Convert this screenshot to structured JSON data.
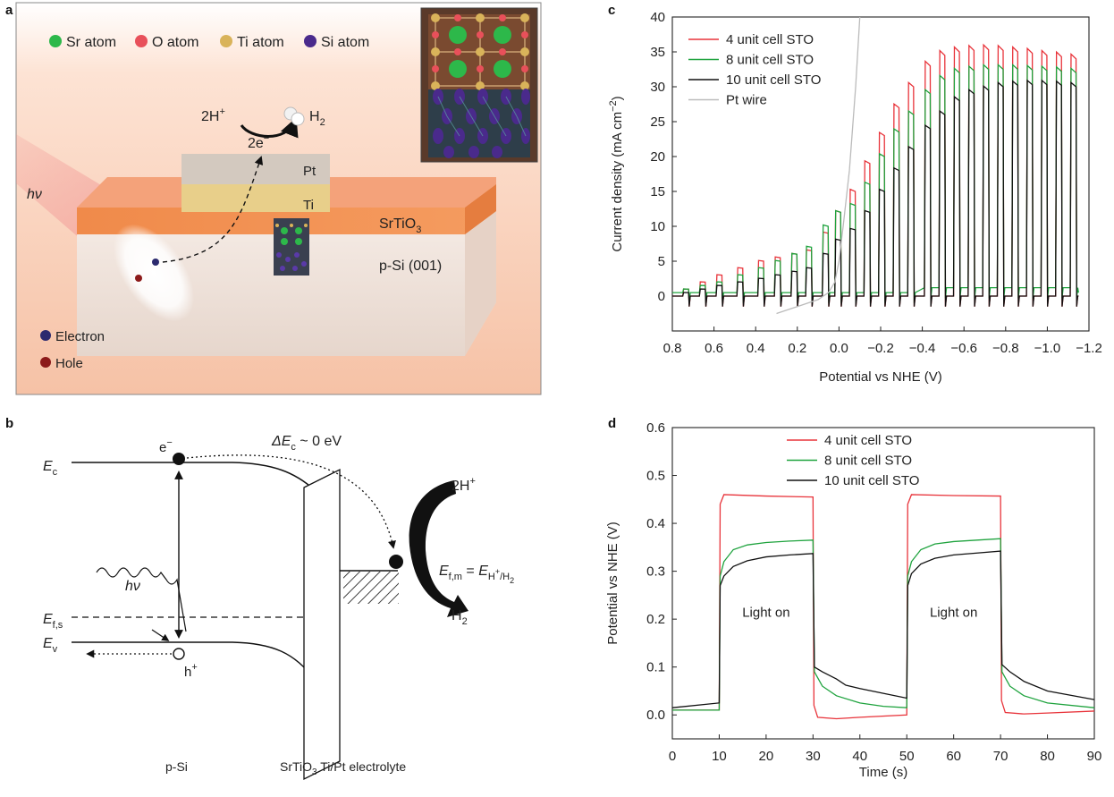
{
  "panel_labels": {
    "a": "a",
    "b": "b",
    "c": "c",
    "d": "d"
  },
  "panel_a": {
    "legend": [
      {
        "label": "Sr atom",
        "color": "#2db84a"
      },
      {
        "label": "O atom",
        "color": "#e8505a"
      },
      {
        "label": "Ti atom",
        "color": "#d9b35a"
      },
      {
        "label": "Si atom",
        "color": "#4a2a8c"
      }
    ],
    "reaction": {
      "reactant": "2H",
      "reactant_sup": "+",
      "electrons": "2e",
      "electrons_sup": "−",
      "product": "H",
      "product_sub": "2"
    },
    "layers": {
      "pt": "Pt",
      "ti": "Ti",
      "sto": "SrTiO",
      "sto_sub": "3",
      "si": "p-Si (001)"
    },
    "light": "hν",
    "carriers": [
      {
        "label": "Electron",
        "color": "#2c2a6e"
      },
      {
        "label": "Hole",
        "color": "#8c1a1a"
      }
    ]
  },
  "panel_b": {
    "ec": "E",
    "ec_sub": "c",
    "ev": "E",
    "ev_sub": "v",
    "efs": "E",
    "efs_sub": "f,s",
    "electron": "e",
    "electron_sup": "−",
    "hole": "h",
    "hole_sup": "+",
    "delta": "ΔE",
    "delta_sub": "c",
    "delta_val": " ~ 0 eV",
    "efm": "E",
    "efm_sub": "f,m",
    "efm_eq": " = ",
    "efm_rhs": "E",
    "efm_rhs_sub": "H",
    "efm_rhs_sub_sup": "+",
    "efm_rhs_sub_tail": "/H",
    "efm_rhs_sub_tail_sub": "2",
    "h2plus": "2H",
    "h2plus_sup": "+",
    "h2": "H",
    "h2_sub": "2",
    "light": "hν",
    "bottom_si": "p-Si",
    "bottom_right_a": "SrTiO",
    "bottom_right_sub": "3",
    "bottom_right_b": " Ti/Pt electrolyte"
  },
  "chart_data": [
    {
      "type": "line",
      "panel": "c",
      "xlabel": "Potential vs NHE (V)",
      "ylabel": "Current density (mA cm",
      "ylabel_sup": "−2",
      "ylabel_end": ")",
      "xlim": [
        0.8,
        -1.2
      ],
      "ylim": [
        -5,
        40
      ],
      "xticks": [
        0.8,
        0.6,
        0.4,
        0.2,
        0.0,
        -0.2,
        -0.4,
        -0.6,
        -0.8,
        -1.0,
        -1.2
      ],
      "xtick_labels": [
        "0.8",
        "0.6",
        "0.4",
        "0.2",
        "0.0",
        "−0.2",
        "−0.4",
        "−0.6",
        "−0.8",
        "−1.0",
        "−1.2"
      ],
      "yticks": [
        0,
        5,
        10,
        15,
        20,
        25,
        30,
        35,
        40
      ],
      "legend_position": "top-left",
      "series": [
        {
          "name": "4 unit cell STO",
          "color": "#e8333a",
          "light_on_x": [
            0.75,
            0.67,
            0.59,
            0.49,
            0.39,
            0.31,
            0.23,
            0.16,
            0.08,
            0.02,
            -0.05,
            -0.12,
            -0.19,
            -0.26,
            -0.33,
            -0.41,
            -0.48,
            -0.55,
            -0.62,
            -0.69,
            -0.76,
            -0.83,
            -0.9,
            -0.97,
            -1.04,
            -1.11
          ],
          "light_on_y": [
            1.0,
            2.0,
            3.0,
            4.0,
            5.0,
            5.5,
            6.0,
            6.5,
            9.0,
            12.0,
            15.0,
            19.0,
            23.0,
            27.0,
            30.0,
            33.0,
            34.5,
            35.0,
            35.2,
            35.3,
            35.2,
            35.0,
            34.8,
            34.5,
            34.3,
            34.0
          ],
          "dark_y": 0.0
        },
        {
          "name": "8 unit cell STO",
          "color": "#1fa33e",
          "light_on_x": [
            0.75,
            0.67,
            0.59,
            0.49,
            0.39,
            0.31,
            0.23,
            0.16,
            0.08,
            0.02,
            -0.05,
            -0.12,
            -0.19,
            -0.26,
            -0.33,
            -0.41,
            -0.48,
            -0.55,
            -0.62,
            -0.69,
            -0.76,
            -0.83,
            -0.9,
            -0.97,
            -1.04,
            -1.11
          ],
          "light_on_y": [
            1.0,
            1.5,
            2.0,
            3.0,
            4.0,
            5.0,
            6.0,
            7.0,
            10.0,
            12.0,
            13.0,
            16.0,
            20.0,
            23.5,
            26.0,
            29.0,
            31.0,
            32.0,
            32.3,
            32.5,
            32.5,
            32.5,
            32.4,
            32.3,
            32.2,
            32.0
          ],
          "dark_y": 0.5
        },
        {
          "name": "10 unit cell STO",
          "color": "#111111",
          "light_on_x": [
            0.75,
            0.67,
            0.59,
            0.49,
            0.39,
            0.31,
            0.23,
            0.16,
            0.08,
            0.02,
            -0.05,
            -0.12,
            -0.19,
            -0.26,
            -0.33,
            -0.41,
            -0.48,
            -0.55,
            -0.62,
            -0.69,
            -0.76,
            -0.83,
            -0.9,
            -0.97,
            -1.04,
            -1.11
          ],
          "light_on_y": [
            0.5,
            1.0,
            1.5,
            2.0,
            2.5,
            3.0,
            3.5,
            4.0,
            6.0,
            8.0,
            9.5,
            12.0,
            15.0,
            18.0,
            21.0,
            24.0,
            26.0,
            28.0,
            29.0,
            29.5,
            30.0,
            30.2,
            30.3,
            30.3,
            30.2,
            30.0
          ],
          "dark_y": 0.0
        },
        {
          "name": "Pt wire",
          "color": "#bbbbbb",
          "x": [
            0.3,
            0.2,
            0.1,
            0.05,
            0.02,
            0.0,
            -0.02,
            -0.05,
            -0.08,
            -0.1
          ],
          "y": [
            -2.5,
            -1.5,
            -0.5,
            0.5,
            2.0,
            5.0,
            10.0,
            18.0,
            30.0,
            40.0
          ]
        }
      ]
    },
    {
      "type": "line",
      "panel": "d",
      "xlabel": "Time (s)",
      "ylabel": "Potential vs NHE (V)",
      "xlim": [
        0,
        90
      ],
      "ylim": [
        -0.05,
        0.6
      ],
      "xticks": [
        0,
        10,
        20,
        30,
        40,
        50,
        60,
        70,
        80,
        90
      ],
      "yticks": [
        0.0,
        0.1,
        0.2,
        0.3,
        0.4,
        0.5,
        0.6
      ],
      "ytick_labels": [
        "0.0",
        "0.1",
        "0.2",
        "0.3",
        "0.4",
        "0.5",
        "0.6"
      ],
      "annotations": [
        "Light on",
        "Light on"
      ],
      "legend_position": "top-center",
      "series": [
        {
          "name": "4 unit cell STO",
          "color": "#e8333a",
          "x": [
            0,
            10,
            10.2,
            11,
            20,
            30,
            30.2,
            31,
            35,
            40,
            50,
            50.2,
            51,
            60,
            70,
            70.2,
            71,
            75,
            80,
            90
          ],
          "y": [
            0.01,
            0.01,
            0.44,
            0.46,
            0.457,
            0.455,
            0.02,
            -0.005,
            -0.008,
            -0.005,
            0.0,
            0.44,
            0.46,
            0.458,
            0.457,
            0.03,
            0.005,
            0.002,
            0.004,
            0.008
          ]
        },
        {
          "name": "8 unit cell STO",
          "color": "#1fa33e",
          "x": [
            0,
            10,
            10.2,
            11,
            13,
            16,
            20,
            25,
            30,
            30.3,
            32,
            35,
            40,
            45,
            50,
            50.2,
            51,
            53,
            56,
            60,
            65,
            70,
            70.3,
            72,
            75,
            80,
            90
          ],
          "y": [
            0.01,
            0.01,
            0.29,
            0.32,
            0.345,
            0.355,
            0.36,
            0.363,
            0.365,
            0.09,
            0.06,
            0.04,
            0.025,
            0.018,
            0.015,
            0.29,
            0.32,
            0.345,
            0.357,
            0.362,
            0.365,
            0.368,
            0.09,
            0.06,
            0.04,
            0.025,
            0.015
          ]
        },
        {
          "name": "10 unit cell STO",
          "color": "#111111",
          "x": [
            0,
            10,
            10.2,
            11,
            13,
            16,
            20,
            25,
            30,
            30.3,
            32,
            35,
            37,
            40,
            45,
            50,
            50.2,
            51,
            53,
            56,
            60,
            65,
            70,
            70.3,
            72,
            75,
            80,
            90
          ],
          "y": [
            0.015,
            0.025,
            0.27,
            0.29,
            0.31,
            0.322,
            0.33,
            0.334,
            0.337,
            0.1,
            0.09,
            0.075,
            0.062,
            0.055,
            0.045,
            0.035,
            0.27,
            0.295,
            0.315,
            0.327,
            0.334,
            0.338,
            0.342,
            0.105,
            0.09,
            0.07,
            0.05,
            0.032
          ]
        }
      ]
    }
  ]
}
